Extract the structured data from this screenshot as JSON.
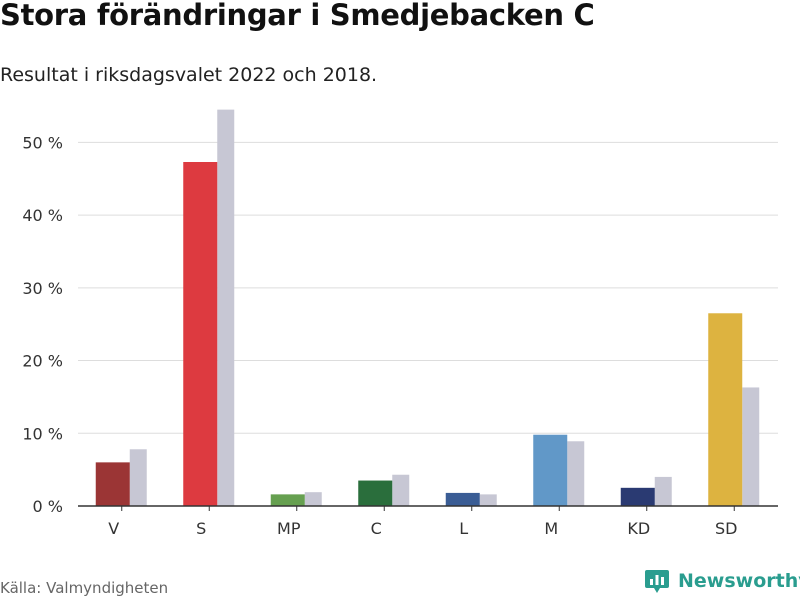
{
  "header": {
    "title": "Stora förändringar i Smedjebacken C",
    "subtitle": "Resultat i riksdagsvalet 2022 och 2018."
  },
  "footer": {
    "source": "Källa: Valmyndigheten",
    "brand": "Newsworthy",
    "brand_icon": "bar-chart-logo-icon"
  },
  "colors": {
    "previous_year": "#c7c7d4",
    "grid": "#dddddd",
    "axis": "#333333",
    "brand": "#2a9d8f"
  },
  "chart_data": {
    "type": "bar",
    "title": "Stora förändringar i Smedjebacken C",
    "subtitle": "Resultat i riksdagsvalet 2022 och 2018.",
    "xlabel": "",
    "ylabel": "",
    "ylim": [
      0,
      55
    ],
    "yticks": [
      0,
      10,
      20,
      30,
      40,
      50
    ],
    "ytick_suffix": " %",
    "grid": true,
    "legend": "none",
    "categories": [
      "V",
      "S",
      "MP",
      "C",
      "L",
      "M",
      "KD",
      "SD"
    ],
    "series": [
      {
        "name": "2022",
        "values": [
          6.0,
          47.3,
          1.6,
          3.5,
          1.8,
          9.8,
          2.5,
          26.5
        ],
        "colors": [
          "#9b3535",
          "#dd3a40",
          "#66a050",
          "#2a6e3c",
          "#3a5d95",
          "#6198c8",
          "#2a3a72",
          "#ddb340"
        ]
      },
      {
        "name": "2018",
        "values": [
          7.8,
          54.5,
          1.9,
          4.3,
          1.6,
          8.9,
          4.0,
          16.3
        ],
        "color": "#c7c7d4"
      }
    ]
  }
}
